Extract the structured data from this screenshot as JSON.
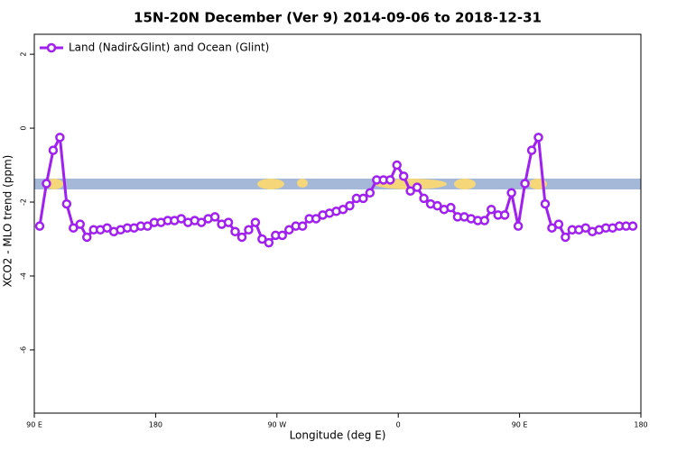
{
  "chart_data": {
    "type": "line",
    "title": "15N-20N December (Ver 9)   2014-09-06 to 2018-12-31",
    "x_label": "Longitude (deg E)",
    "y_label": "XCO2 - MLO trend (ppm)",
    "x": [
      94,
      99,
      104,
      109,
      114,
      119,
      124,
      129,
      134,
      139,
      144,
      149,
      154,
      159,
      164,
      169,
      174,
      179,
      184,
      189,
      194,
      199,
      204,
      209,
      214,
      219,
      224,
      229,
      234,
      239,
      244,
      249,
      254,
      259,
      264,
      269,
      274,
      279,
      284,
      289,
      294,
      299,
      304,
      309,
      314,
      319,
      324,
      329,
      334,
      339,
      344,
      349,
      354,
      359,
      364,
      369,
      374,
      379,
      384,
      389,
      394,
      399,
      404,
      409,
      414,
      419,
      424,
      429,
      434,
      439,
      444,
      449,
      454,
      459,
      464,
      469,
      474,
      479,
      484,
      489,
      494,
      499,
      504,
      509,
      514,
      519,
      524,
      529,
      534
    ],
    "series": [
      {
        "name": "Land (Nadir&Glint) and Ocean (Glint)",
        "color": "#a020f0",
        "values": [
          -2.65,
          -1.5,
          -0.6,
          -0.25,
          -2.05,
          -2.7,
          -2.6,
          -2.95,
          -2.75,
          -2.75,
          -2.7,
          -2.8,
          -2.75,
          -2.7,
          -2.7,
          -2.65,
          -2.65,
          -2.55,
          -2.55,
          -2.5,
          -2.5,
          -2.45,
          -2.55,
          -2.5,
          -2.55,
          -2.45,
          -2.4,
          -2.6,
          -2.55,
          -2.8,
          -2.95,
          -2.75,
          -2.55,
          -3.0,
          -3.1,
          -2.9,
          -2.9,
          -2.75,
          -2.65,
          -2.65,
          -2.45,
          -2.45,
          -2.35,
          -2.3,
          -2.25,
          -2.2,
          -2.1,
          -1.9,
          -1.9,
          -1.75,
          -1.4,
          -1.4,
          -1.4,
          -1.0,
          -1.3,
          -1.7,
          -1.6,
          -1.9,
          -2.05,
          -2.1,
          -2.2,
          -2.15,
          -2.4,
          -2.4,
          -2.45,
          -2.5,
          -2.5,
          -2.2,
          -2.35,
          -2.35,
          -1.75,
          -2.65,
          -1.5,
          -0.6,
          -0.25,
          -2.05,
          -2.7,
          -2.6,
          -2.95,
          -2.75,
          -2.75,
          -2.7,
          -2.8,
          -2.75,
          -2.7,
          -2.7,
          -2.65,
          -2.65,
          -2.65
        ]
      }
    ],
    "xlim": [
      90,
      540
    ],
    "xticks": [
      {
        "value": 90,
        "label": "90 E"
      },
      180,
      {
        "value": 270,
        "label": "90 W"
      },
      {
        "value": 360,
        "label": "0"
      },
      {
        "value": 450,
        "label": "90 E"
      },
      {
        "value": 540,
        "label": "180"
      }
    ],
    "ylim": [
      -7.71,
      2.54
    ],
    "yticks": [
      -6,
      -4,
      -2,
      0,
      2
    ],
    "legend": "top-left"
  }
}
